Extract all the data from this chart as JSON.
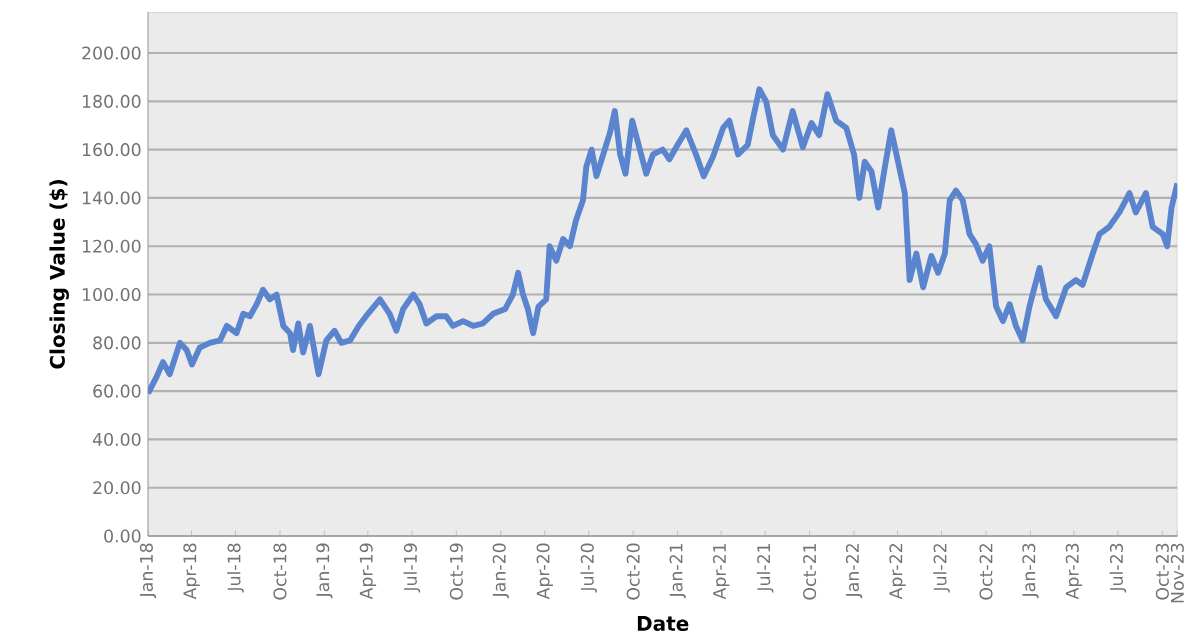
{
  "chart_data": {
    "type": "line",
    "xlabel": "Date",
    "ylabel": "Closing Value ($)",
    "grid": "y",
    "marker": "none",
    "line_style": "solid",
    "xlim": [
      "2018-01-01",
      "2023-11-01"
    ],
    "ylim": [
      0,
      217
    ],
    "xticks": [
      {
        "value": "2018-01-01",
        "label": "Jan-18"
      },
      {
        "value": "2018-04-01",
        "label": "Apr-18"
      },
      {
        "value": "2018-07-01",
        "label": "Jul-18"
      },
      {
        "value": "2018-10-01",
        "label": "Oct-18"
      },
      {
        "value": "2019-01-01",
        "label": "Jan-19"
      },
      {
        "value": "2019-04-01",
        "label": "Apr-19"
      },
      {
        "value": "2019-07-01",
        "label": "Jul-19"
      },
      {
        "value": "2019-10-01",
        "label": "Oct-19"
      },
      {
        "value": "2020-01-01",
        "label": "Jan-20"
      },
      {
        "value": "2020-04-01",
        "label": "Apr-20"
      },
      {
        "value": "2020-07-01",
        "label": "Jul-20"
      },
      {
        "value": "2020-10-01",
        "label": "Oct-20"
      },
      {
        "value": "2021-01-01",
        "label": "Jan-21"
      },
      {
        "value": "2021-04-01",
        "label": "Apr-21"
      },
      {
        "value": "2021-07-01",
        "label": "Jul-21"
      },
      {
        "value": "2021-10-01",
        "label": "Oct-21"
      },
      {
        "value": "2022-01-01",
        "label": "Jan-22"
      },
      {
        "value": "2022-04-01",
        "label": "Apr-22"
      },
      {
        "value": "2022-07-01",
        "label": "Jul-22"
      },
      {
        "value": "2022-10-01",
        "label": "Oct-22"
      },
      {
        "value": "2023-01-01",
        "label": "Jan-23"
      },
      {
        "value": "2023-04-01",
        "label": "Apr-23"
      },
      {
        "value": "2023-07-01",
        "label": "Jul-23"
      },
      {
        "value": "2023-10-01",
        "label": "Oct-23"
      },
      {
        "value": "2023-11-01",
        "label": "Nov-23"
      }
    ],
    "yticks": [
      {
        "value": 0,
        "label": "0.00"
      },
      {
        "value": 20,
        "label": "20.00"
      },
      {
        "value": 40,
        "label": "40.00"
      },
      {
        "value": 60,
        "label": "60.00"
      },
      {
        "value": 80,
        "label": "80.00"
      },
      {
        "value": 100,
        "label": "100.00"
      },
      {
        "value": 120,
        "label": "120.00"
      },
      {
        "value": 140,
        "label": "140.00"
      },
      {
        "value": 160,
        "label": "160.00"
      },
      {
        "value": 180,
        "label": "180.00"
      },
      {
        "value": 200,
        "label": "200.00"
      }
    ],
    "x": [
      "2018-01-01",
      "2018-01-19",
      "2018-02-01",
      "2018-02-15",
      "2018-03-08",
      "2018-03-22",
      "2018-04-02",
      "2018-04-18",
      "2018-05-09",
      "2018-05-30",
      "2018-06-13",
      "2018-07-03",
      "2018-07-17",
      "2018-07-31",
      "2018-08-14",
      "2018-08-27",
      "2018-09-10",
      "2018-09-24",
      "2018-10-08",
      "2018-10-22",
      "2018-10-28",
      "2018-11-08",
      "2018-11-18",
      "2018-12-02",
      "2018-12-20",
      "2019-01-05",
      "2019-01-22",
      "2019-02-05",
      "2019-02-23",
      "2019-03-13",
      "2019-04-01",
      "2019-04-26",
      "2019-05-16",
      "2019-05-30",
      "2019-06-13",
      "2019-07-04",
      "2019-07-17",
      "2019-07-31",
      "2019-08-21",
      "2019-09-10",
      "2019-09-24",
      "2019-10-15",
      "2019-11-05",
      "2019-11-25",
      "2019-12-16",
      "2020-01-10",
      "2020-01-26",
      "2020-02-06",
      "2020-02-16",
      "2020-02-26",
      "2020-03-08",
      "2020-03-19",
      "2020-04-04",
      "2020-04-11",
      "2020-04-25",
      "2020-05-09",
      "2020-05-23",
      "2020-06-05",
      "2020-06-19",
      "2020-06-26",
      "2020-07-07",
      "2020-07-17",
      "2020-07-31",
      "2020-08-14",
      "2020-08-24",
      "2020-09-04",
      "2020-09-15",
      "2020-09-29",
      "2020-10-28",
      "2020-11-11",
      "2020-12-01",
      "2020-12-15",
      "2020-12-29",
      "2021-01-19",
      "2021-02-08",
      "2021-02-24",
      "2021-03-15",
      "2021-04-05",
      "2021-04-18",
      "2021-05-06",
      "2021-05-26",
      "2021-06-06",
      "2021-06-19",
      "2021-07-03",
      "2021-07-17",
      "2021-08-07",
      "2021-08-27",
      "2021-09-17",
      "2021-10-05",
      "2021-10-21",
      "2021-11-07",
      "2021-11-25",
      "2021-12-16",
      "2022-01-01",
      "2022-01-12",
      "2022-01-23",
      "2022-02-06",
      "2022-02-20",
      "2022-03-06",
      "2022-03-19",
      "2022-04-02",
      "2022-04-16",
      "2022-04-26",
      "2022-05-10",
      "2022-05-24",
      "2022-06-10",
      "2022-06-24",
      "2022-07-08",
      "2022-07-18",
      "2022-07-31",
      "2022-08-14",
      "2022-08-28",
      "2022-09-10",
      "2022-09-24",
      "2022-10-08",
      "2022-10-22",
      "2022-11-05",
      "2022-11-19",
      "2022-12-02",
      "2022-12-16",
      "2022-12-30",
      "2023-01-20",
      "2023-02-02",
      "2023-02-23",
      "2023-03-16",
      "2023-04-05",
      "2023-04-19",
      "2023-05-10",
      "2023-05-24",
      "2023-06-13",
      "2023-07-04",
      "2023-07-25",
      "2023-08-07",
      "2023-08-28",
      "2023-09-11",
      "2023-10-02",
      "2023-10-11",
      "2023-10-20",
      "2023-11-01"
    ],
    "series": [
      {
        "color": "#5b84cf",
        "values": [
          59,
          66,
          72,
          67,
          80,
          77,
          71,
          78,
          80,
          81,
          87,
          84,
          92,
          91,
          96,
          102,
          98,
          100,
          87,
          84,
          77,
          88,
          76,
          87,
          67,
          81,
          85,
          80,
          81,
          87,
          92,
          98,
          92,
          85,
          94,
          100,
          96,
          88,
          91,
          91,
          87,
          89,
          87,
          88,
          92,
          94,
          100,
          109,
          100,
          94,
          84,
          95,
          98,
          120,
          114,
          123,
          120,
          131,
          139,
          153,
          160,
          149,
          158,
          167,
          176,
          158,
          150,
          172,
          150,
          158,
          160,
          156,
          161,
          168,
          158,
          149,
          157,
          169,
          172,
          158,
          162,
          173,
          185,
          180,
          166,
          160,
          176,
          161,
          171,
          166,
          183,
          172,
          169,
          158,
          140,
          155,
          151,
          136,
          153,
          168,
          155,
          142,
          106,
          117,
          103,
          116,
          109,
          117,
          139,
          143,
          139,
          125,
          121,
          114,
          120,
          95,
          89,
          96,
          87,
          81,
          95,
          111,
          98,
          91,
          103,
          106,
          104,
          117,
          125,
          128,
          134,
          142,
          134,
          142,
          128,
          125,
          120,
          136,
          146
        ]
      }
    ]
  }
}
